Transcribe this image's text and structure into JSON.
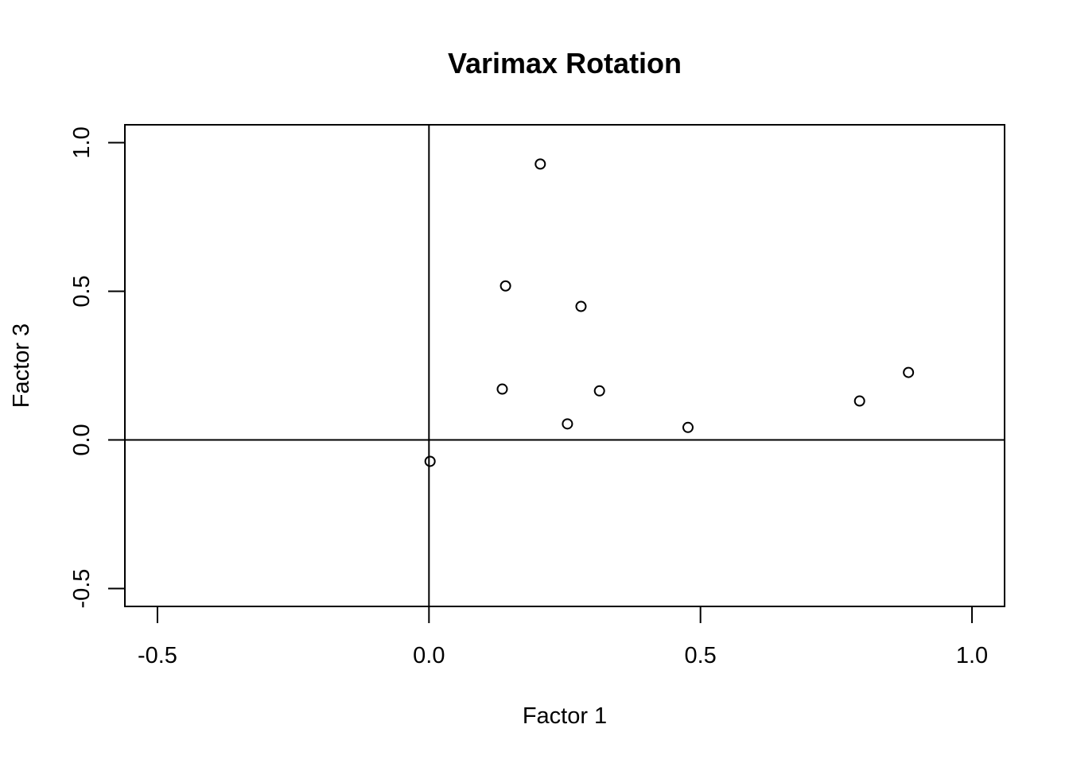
{
  "chart_data": {
    "type": "scatter",
    "title": "Varimax Rotation",
    "xlabel": "Factor 1",
    "ylabel": "Factor 3",
    "xlim": [
      -0.56,
      1.06
    ],
    "ylim": [
      -0.56,
      1.06
    ],
    "x_ticks": [
      -0.5,
      0.0,
      0.5,
      1.0
    ],
    "y_ticks": [
      -0.5,
      0.0,
      0.5,
      1.0
    ],
    "x_tick_labels": [
      "-0.5",
      "0.0",
      "0.5",
      "1.0"
    ],
    "y_tick_labels": [
      "-0.5",
      "0.0",
      "0.5",
      "1.0"
    ],
    "reference_lines": {
      "x": 0,
      "y": 0
    },
    "grid": false,
    "marker": "open-circle",
    "color": "#000000",
    "points": [
      {
        "x": 0.205,
        "y": 0.928
      },
      {
        "x": 0.141,
        "y": 0.518
      },
      {
        "x": 0.28,
        "y": 0.449
      },
      {
        "x": 0.135,
        "y": 0.171
      },
      {
        "x": 0.314,
        "y": 0.165
      },
      {
        "x": 0.255,
        "y": 0.054
      },
      {
        "x": 0.477,
        "y": 0.042
      },
      {
        "x": 0.793,
        "y": 0.131
      },
      {
        "x": 0.883,
        "y": 0.227
      },
      {
        "x": 0.002,
        "y": -0.072
      }
    ]
  }
}
